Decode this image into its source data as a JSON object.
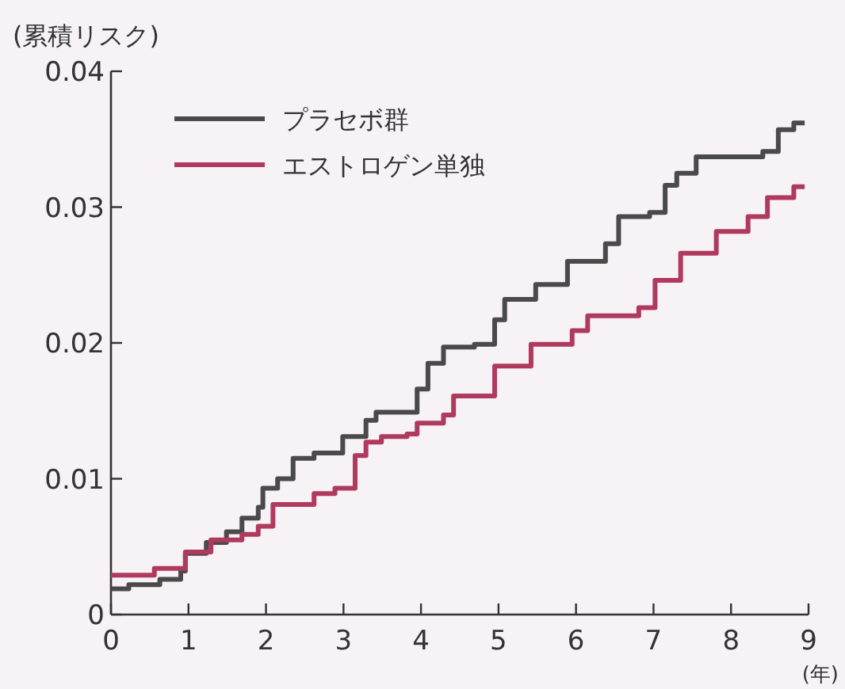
{
  "chart_data": {
    "type": "step",
    "ylabel": "(累積リスク)",
    "xlabel": "(年)",
    "xlim": [
      0,
      9
    ],
    "xticks": [
      0,
      1,
      2,
      3,
      4,
      5,
      6,
      7,
      8,
      9
    ],
    "ylim": [
      0,
      0.04
    ],
    "yticks": [
      0,
      0.01,
      0.02,
      0.03,
      0.04
    ],
    "grid": false,
    "legend": "top left",
    "series": [
      {
        "name": "プラセボ群",
        "color": "#4a4a4a",
        "x": [
          0,
          0.23,
          0.63,
          0.9,
          0.96,
          1.23,
          1.49,
          1.69,
          1.9,
          1.96,
          2.15,
          2.35,
          2.62,
          2.99,
          3.29,
          3.42,
          3.95,
          4.09,
          4.29,
          4.69,
          4.95,
          5.08,
          5.48,
          5.89,
          6.38,
          6.55,
          6.95,
          7.15,
          7.3,
          7.55,
          8.41,
          8.61,
          8.81,
          8.95
        ],
        "values": [
          0.0019,
          0.0022,
          0.0026,
          0.0032,
          0.0045,
          0.0053,
          0.0061,
          0.0071,
          0.0079,
          0.0093,
          0.01,
          0.0115,
          0.0119,
          0.0131,
          0.0143,
          0.0149,
          0.0166,
          0.0185,
          0.0197,
          0.0199,
          0.0217,
          0.0232,
          0.0243,
          0.026,
          0.0273,
          0.0293,
          0.0296,
          0.0316,
          0.0325,
          0.0337,
          0.0341,
          0.0357,
          0.0362,
          0.0362
        ]
      },
      {
        "name": "エストロゲン単独",
        "color": "#b03a5e",
        "x": [
          0,
          0.56,
          0.96,
          1.29,
          1.69,
          1.9,
          2.09,
          2.62,
          2.89,
          3.15,
          3.29,
          3.49,
          3.82,
          3.95,
          4.29,
          4.42,
          4.95,
          5.42,
          5.95,
          6.15,
          6.81,
          7.02,
          7.35,
          7.81,
          8.22,
          8.47,
          8.81,
          8.95
        ],
        "values": [
          0.0029,
          0.0034,
          0.0046,
          0.0055,
          0.0059,
          0.0065,
          0.0081,
          0.0089,
          0.0093,
          0.0117,
          0.0127,
          0.0131,
          0.0133,
          0.0141,
          0.0147,
          0.0161,
          0.0183,
          0.0199,
          0.0209,
          0.022,
          0.0226,
          0.0246,
          0.0266,
          0.0282,
          0.0293,
          0.0307,
          0.0315,
          0.0315
        ]
      }
    ]
  }
}
